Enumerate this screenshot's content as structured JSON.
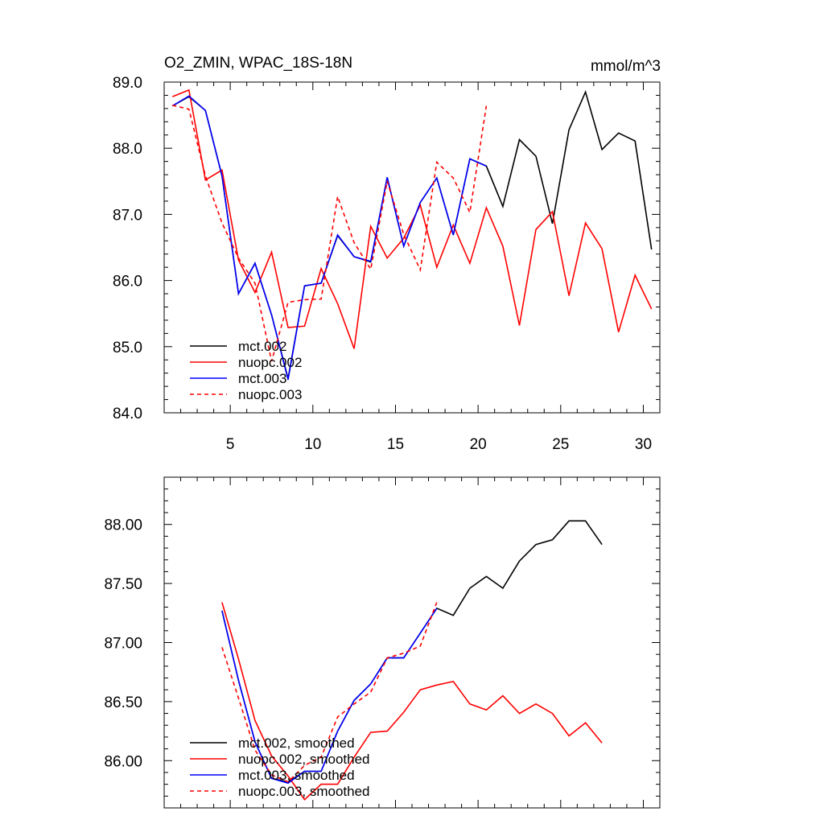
{
  "chart_data": [
    {
      "type": "line",
      "title": "O2_ZMIN, WPAC_18S-18N",
      "units": "mmol/m^3",
      "xlim": [
        1,
        31
      ],
      "ylim": [
        84.0,
        89.0
      ],
      "x_ticks": [
        5,
        10,
        15,
        20,
        25,
        30
      ],
      "x_tick_labels": [
        "5",
        "10",
        "15",
        "20",
        "25",
        "30"
      ],
      "y_ticks": [
        84.0,
        85.0,
        86.0,
        87.0,
        88.0,
        89.0
      ],
      "y_tick_labels": [
        "84.0",
        "85.0",
        "86.0",
        "87.0",
        "88.0",
        "89.0"
      ],
      "legend_position": "bottom-left",
      "series": [
        {
          "name": "mct.002",
          "color": "#000000",
          "dash": "solid",
          "x": [
            1.5,
            2.5,
            3.5,
            4.5,
            5.5,
            6.5,
            7.5,
            8.5,
            9.5,
            10.5,
            11.5,
            12.5,
            13.5,
            14.5,
            15.5,
            16.5,
            17.5,
            18.5,
            19.5,
            20.5,
            21.5,
            22.5,
            23.5,
            24.5,
            25.5,
            26.5,
            27.5,
            28.5,
            29.5,
            30.5
          ],
          "y": [
            88.64,
            88.78,
            88.57,
            87.58,
            85.8,
            86.26,
            85.48,
            84.52,
            85.92,
            85.96,
            86.68,
            86.36,
            86.28,
            87.56,
            86.52,
            87.18,
            87.55,
            86.69,
            87.84,
            87.73,
            87.12,
            88.13,
            87.88,
            86.86,
            88.28,
            88.85,
            87.98,
            88.23,
            88.11,
            86.47
          ]
        },
        {
          "name": "nuopc.002",
          "color": "#ff0000",
          "dash": "solid",
          "x": [
            1.5,
            2.5,
            3.5,
            4.5,
            5.5,
            6.5,
            7.5,
            8.5,
            9.5,
            10.5,
            11.5,
            12.5,
            13.5,
            14.5,
            15.5,
            16.5,
            17.5,
            18.5,
            19.5,
            20.5,
            21.5,
            22.5,
            23.5,
            24.5,
            25.5,
            26.5,
            27.5,
            28.5,
            29.5,
            30.5
          ],
          "y": [
            88.78,
            88.88,
            87.52,
            87.67,
            86.31,
            85.82,
            86.43,
            85.29,
            85.31,
            86.18,
            85.65,
            84.97,
            86.82,
            86.34,
            86.64,
            87.14,
            86.2,
            86.84,
            86.26,
            87.1,
            86.52,
            85.32,
            86.77,
            87.04,
            85.77,
            86.87,
            86.48,
            85.22,
            86.08,
            85.57
          ]
        },
        {
          "name": "mct.003",
          "color": "#0000ff",
          "dash": "solid",
          "x": [
            1.5,
            2.5,
            3.5,
            4.5,
            5.5,
            6.5,
            7.5,
            8.5,
            9.5,
            10.5,
            11.5,
            12.5,
            13.5,
            14.5,
            15.5,
            16.5,
            17.5,
            18.5,
            19.5,
            20.5
          ],
          "y": [
            88.64,
            88.79,
            88.57,
            87.58,
            85.8,
            86.26,
            85.48,
            84.5,
            85.92,
            85.96,
            86.69,
            86.36,
            86.29,
            87.56,
            86.52,
            87.18,
            87.55,
            86.69,
            87.84,
            87.73
          ]
        },
        {
          "name": "nuopc.003",
          "color": "#ff0000",
          "dash": "dashed",
          "x": [
            1.5,
            2.5,
            3.5,
            4.5,
            5.5,
            6.5,
            7.5,
            8.5,
            9.5,
            10.5,
            11.5,
            12.5,
            13.5,
            14.5,
            15.5,
            16.5,
            17.5,
            18.5,
            19.5,
            20.5
          ],
          "y": [
            88.65,
            88.59,
            87.58,
            86.87,
            86.34,
            85.96,
            84.78,
            85.67,
            85.71,
            85.72,
            87.27,
            86.57,
            86.17,
            87.5,
            86.7,
            86.16,
            87.79,
            87.55,
            87.03,
            88.64
          ]
        }
      ]
    },
    {
      "type": "line",
      "xlim": [
        1,
        31
      ],
      "ylim": [
        85.6,
        88.4
      ],
      "x_ticks": [
        5,
        10,
        15,
        20,
        25,
        30
      ],
      "y_ticks": [
        86.0,
        86.5,
        87.0,
        87.5,
        88.0
      ],
      "y_tick_labels": [
        "86.00",
        "86.50",
        "87.00",
        "87.50",
        "88.00"
      ],
      "legend_position": "bottom-left",
      "series": [
        {
          "name": "mct.002, smoothed",
          "color": "#000000",
          "dash": "solid",
          "x": [
            4.5,
            5.5,
            6.5,
            7.5,
            8.5,
            9.5,
            10.5,
            11.5,
            12.5,
            13.5,
            14.5,
            15.5,
            16.5,
            17.5,
            18.5,
            19.5,
            20.5,
            21.5,
            22.5,
            23.5,
            24.5,
            25.5,
            26.5,
            27.5
          ],
          "y": [
            87.27,
            86.68,
            86.16,
            85.85,
            85.82,
            85.91,
            85.91,
            86.25,
            86.51,
            86.65,
            86.87,
            86.87,
            87.08,
            87.29,
            87.23,
            87.46,
            87.56,
            87.46,
            87.69,
            87.83,
            87.87,
            88.03,
            88.03,
            87.83
          ]
        },
        {
          "name": "nuopc.002, smoothed",
          "color": "#ff0000",
          "dash": "solid",
          "x": [
            4.5,
            5.5,
            6.5,
            7.5,
            8.5,
            9.5,
            10.5,
            11.5,
            12.5,
            13.5,
            14.5,
            15.5,
            16.5,
            17.5,
            18.5,
            19.5,
            20.5,
            21.5,
            22.5,
            23.5,
            24.5,
            25.5,
            26.5,
            27.5
          ],
          "y": [
            87.34,
            86.86,
            86.34,
            86.04,
            85.87,
            85.67,
            85.8,
            85.8,
            86.03,
            86.24,
            86.25,
            86.41,
            86.6,
            86.64,
            86.67,
            86.48,
            86.43,
            86.55,
            86.4,
            86.48,
            86.4,
            86.21,
            86.32,
            86.15
          ]
        },
        {
          "name": "mct.003, smoothed",
          "color": "#0000ff",
          "dash": "solid",
          "x": [
            4.5,
            5.5,
            6.5,
            7.5,
            8.5,
            9.5,
            10.5,
            11.5,
            12.5,
            13.5,
            14.5,
            15.5,
            16.5,
            17.5
          ],
          "y": [
            87.27,
            86.68,
            86.16,
            85.85,
            85.81,
            85.91,
            85.91,
            86.25,
            86.51,
            86.65,
            86.87,
            86.87,
            87.08,
            87.29
          ]
        },
        {
          "name": "nuopc.003, smoothed",
          "color": "#ff0000",
          "dash": "dashed",
          "x": [
            4.5,
            5.5,
            6.5,
            7.5,
            8.5,
            9.5,
            10.5,
            11.5,
            12.5,
            13.5,
            14.5,
            15.5,
            16.5,
            17.5
          ],
          "y": [
            86.96,
            86.53,
            86.09,
            85.88,
            85.82,
            85.96,
            86.03,
            86.37,
            86.48,
            86.58,
            86.87,
            86.91,
            86.97,
            87.34
          ]
        }
      ]
    }
  ]
}
